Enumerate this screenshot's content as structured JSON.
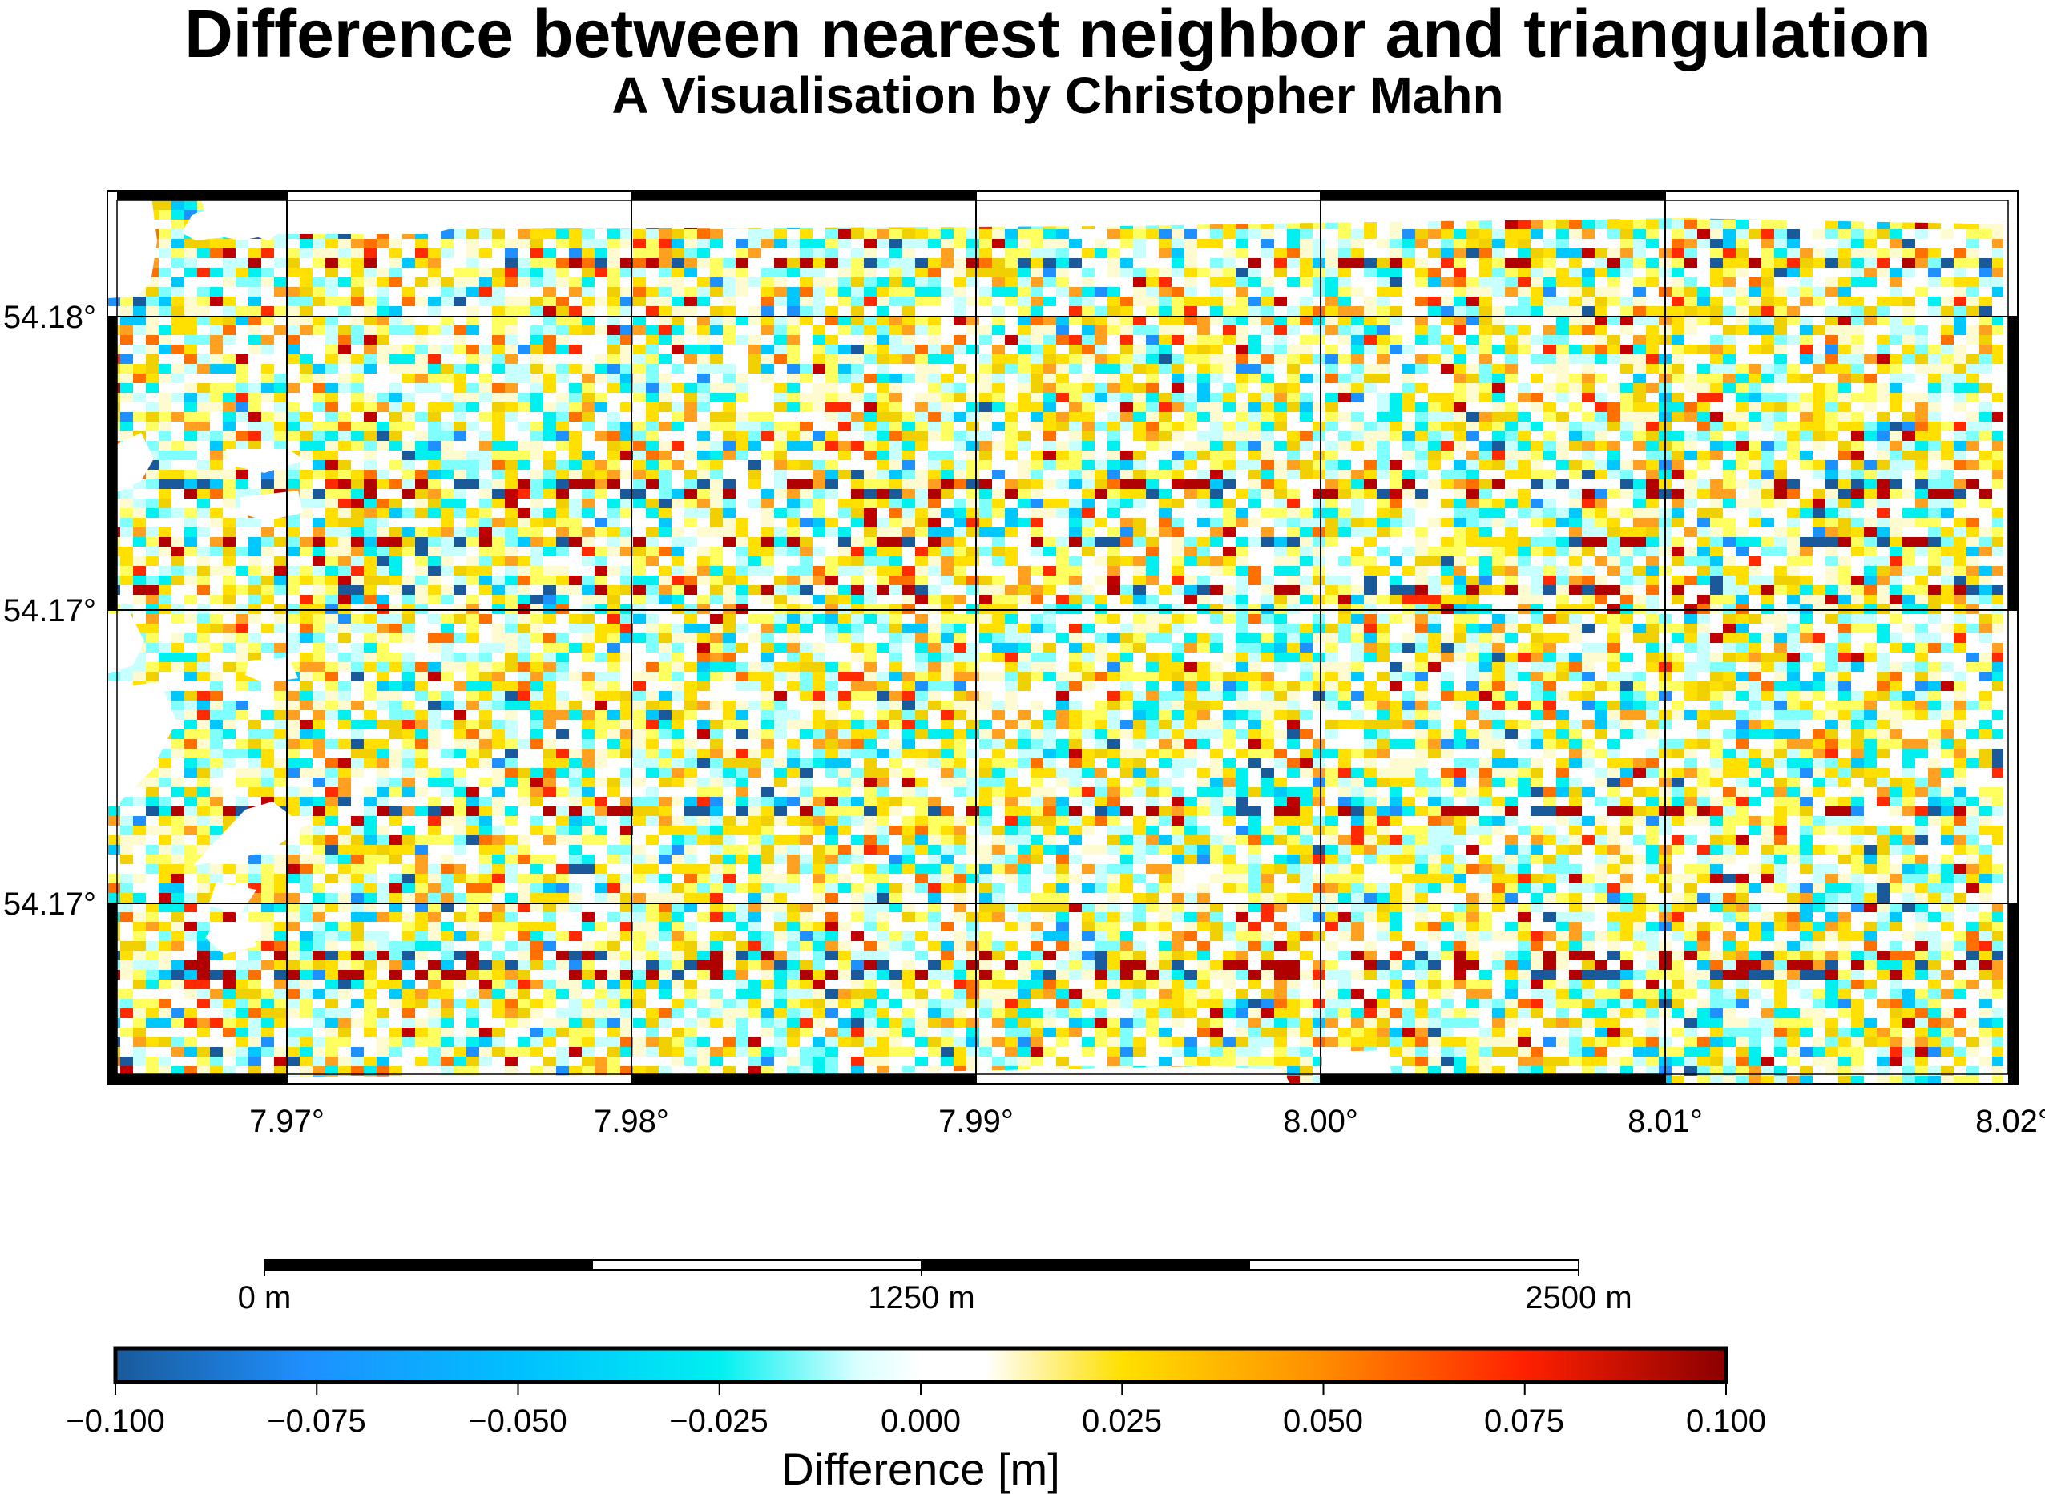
{
  "title": "Difference between nearest neighbor and triangulation",
  "subtitle": "A Visualisation by Christopher Mahn",
  "map": {
    "x_ticks": [
      "7.97°",
      "7.98°",
      "7.99°",
      "8.00°",
      "8.01°",
      "8.02°"
    ],
    "y_ticks": [
      "54.18°",
      "54.17°",
      "54.17°"
    ],
    "lon_range": [
      7.9648,
      8.0203
    ],
    "lat_range": [
      54.1615,
      54.1825
    ],
    "gridlines": true
  },
  "scale_bar": {
    "labels": [
      "0 m",
      "1250 m",
      "2500 m"
    ],
    "max_m": 2500,
    "segments": 4
  },
  "colorbar": {
    "title": "Difference [m]",
    "tick_labels": [
      "−0.100",
      "−0.075",
      "−0.050",
      "−0.025",
      "0.000",
      "0.025",
      "0.050",
      "0.075",
      "0.100"
    ],
    "range": [
      -0.1,
      0.1
    ],
    "colors": [
      "#1a5a9a",
      "#1e90ff",
      "#00c8ff",
      "#00f0f0",
      "#ffffff",
      "#ffff40",
      "#ffd700",
      "#ff8c00",
      "#ff3000",
      "#ff0000",
      "#8b0000"
    ]
  }
}
